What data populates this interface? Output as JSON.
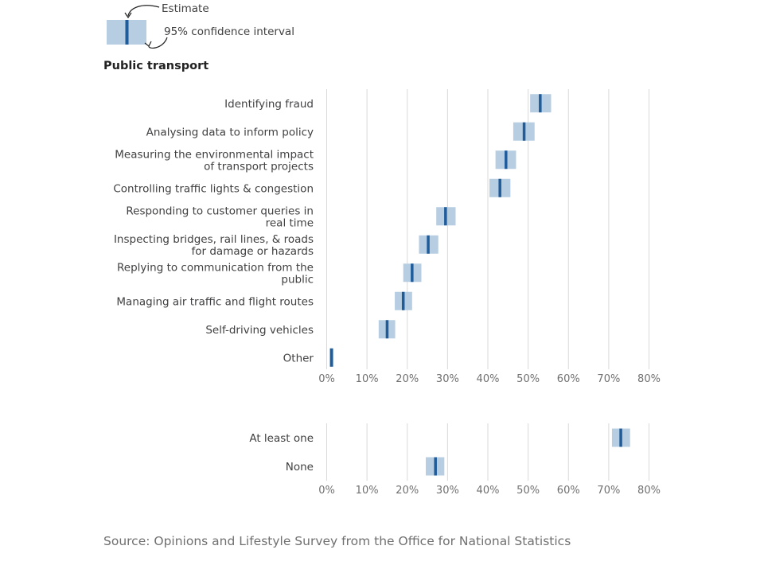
{
  "legend": {
    "estimate_label": "Estimate",
    "ci_label": "95% confidence interval"
  },
  "source": "Source: Opinions and Lifestyle Survey from the Office for National Statistics",
  "colors": {
    "ci_band": "#b7cde1",
    "estimate": "#1f5c99",
    "grid": "#d9d9d9"
  },
  "chart_data": [
    {
      "type": "dot-interval",
      "title": "Public transport",
      "xlim": [
        0,
        80
      ],
      "x_ticks": [
        "0%",
        "10%",
        "20%",
        "30%",
        "40%",
        "50%",
        "60%",
        "70%",
        "80%"
      ],
      "unit": "%",
      "categories": [
        {
          "label": [
            "Identifying fraud"
          ],
          "estimate": 53,
          "ci_low": 50.5,
          "ci_high": 55.7
        },
        {
          "label": [
            "Analysing data to inform policy"
          ],
          "estimate": 49,
          "ci_low": 46.3,
          "ci_high": 51.6
        },
        {
          "label": [
            "Measuring the environmental impact",
            "of transport projects"
          ],
          "estimate": 44.5,
          "ci_low": 41.9,
          "ci_high": 47
        },
        {
          "label": [
            "Controlling traffic lights & congestion"
          ],
          "estimate": 43,
          "ci_low": 40.4,
          "ci_high": 45.6
        },
        {
          "label": [
            "Responding to customer queries in",
            "real time"
          ],
          "estimate": 29.5,
          "ci_low": 27.2,
          "ci_high": 32
        },
        {
          "label": [
            "Inspecting bridges, rail lines, & roads",
            "for damage or hazards"
          ],
          "estimate": 25.2,
          "ci_low": 22.9,
          "ci_high": 27.7
        },
        {
          "label": [
            "Replying to communication from the",
            "public"
          ],
          "estimate": 21.2,
          "ci_low": 19,
          "ci_high": 23.5
        },
        {
          "label": [
            "Managing air traffic and flight routes"
          ],
          "estimate": 19,
          "ci_low": 16.9,
          "ci_high": 21.2
        },
        {
          "label": [
            "Self-driving vehicles"
          ],
          "estimate": 15,
          "ci_low": 12.9,
          "ci_high": 17
        },
        {
          "label": [
            "Other"
          ],
          "estimate": 1.2,
          "ci_low": 0.7,
          "ci_high": 1.7
        }
      ]
    },
    {
      "type": "dot-interval",
      "title": "",
      "xlim": [
        0,
        80
      ],
      "x_ticks": [
        "0%",
        "10%",
        "20%",
        "30%",
        "40%",
        "50%",
        "60%",
        "70%",
        "80%"
      ],
      "unit": "%",
      "categories": [
        {
          "label": [
            "At least one"
          ],
          "estimate": 73,
          "ci_low": 70.8,
          "ci_high": 75.3
        },
        {
          "label": [
            "None"
          ],
          "estimate": 27,
          "ci_low": 24.6,
          "ci_high": 29.2
        }
      ]
    }
  ]
}
